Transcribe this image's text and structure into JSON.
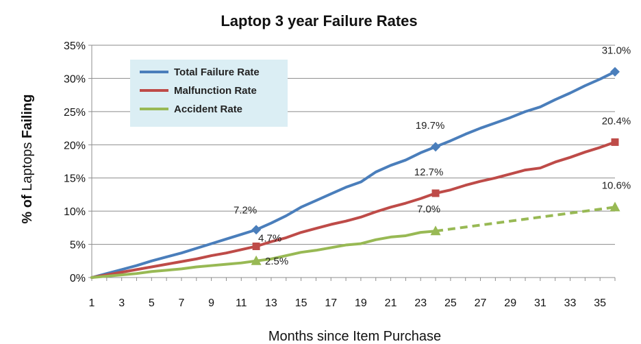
{
  "chart_data": {
    "type": "line",
    "title": "Laptop 3 year Failure Rates",
    "xlabel": "Months since Item Purchase",
    "ylabel_parts": [
      "% of",
      " Laptops ",
      "Failing"
    ],
    "xlim": [
      1,
      36
    ],
    "ylim": [
      0,
      35
    ],
    "x_ticks": [
      1,
      3,
      5,
      7,
      9,
      11,
      13,
      15,
      17,
      19,
      21,
      23,
      25,
      27,
      29,
      31,
      33,
      35
    ],
    "y_ticks": [
      "0%",
      "5%",
      "10%",
      "15%",
      "20%",
      "25%",
      "30%",
      "35%"
    ],
    "grid": true,
    "legend_position": "top-left",
    "series": [
      {
        "name": "Total Failure Rate",
        "color": "#4a7ebb",
        "marker": "diamond",
        "points": [
          [
            1,
            0
          ],
          [
            2,
            0.6
          ],
          [
            3,
            1.2
          ],
          [
            4,
            1.8
          ],
          [
            5,
            2.5
          ],
          [
            6,
            3.1
          ],
          [
            7,
            3.7
          ],
          [
            8,
            4.4
          ],
          [
            9,
            5.1
          ],
          [
            10,
            5.8
          ],
          [
            11,
            6.5
          ],
          [
            12,
            7.2
          ],
          [
            13,
            8.2
          ],
          [
            14,
            9.3
          ],
          [
            15,
            10.6
          ],
          [
            16,
            11.6
          ],
          [
            17,
            12.6
          ],
          [
            18,
            13.6
          ],
          [
            19,
            14.4
          ],
          [
            20,
            15.9
          ],
          [
            21,
            16.9
          ],
          [
            22,
            17.7
          ],
          [
            23,
            18.8
          ],
          [
            24,
            19.7
          ],
          [
            25,
            20.6
          ],
          [
            26,
            21.6
          ],
          [
            27,
            22.5
          ],
          [
            28,
            23.3
          ],
          [
            29,
            24.1
          ],
          [
            30,
            25.0
          ],
          [
            31,
            25.7
          ],
          [
            32,
            26.8
          ],
          [
            33,
            27.8
          ],
          [
            34,
            28.9
          ],
          [
            35,
            29.9
          ],
          [
            36,
            31.0
          ]
        ],
        "marked_points": [
          [
            12,
            7.2
          ],
          [
            24,
            19.7
          ],
          [
            36,
            31.0
          ]
        ],
        "labels": [
          {
            "x": 12,
            "y": 7.2,
            "text": "7.2%"
          },
          {
            "x": 24,
            "y": 19.7,
            "text": "19.7%"
          },
          {
            "x": 36,
            "y": 31.0,
            "text": "31.0%"
          }
        ]
      },
      {
        "name": "Malfunction Rate",
        "color": "#be4b48",
        "marker": "square",
        "points": [
          [
            1,
            0
          ],
          [
            2,
            0.4
          ],
          [
            3,
            0.8
          ],
          [
            4,
            1.2
          ],
          [
            5,
            1.6
          ],
          [
            6,
            2.0
          ],
          [
            7,
            2.4
          ],
          [
            8,
            2.8
          ],
          [
            9,
            3.3
          ],
          [
            10,
            3.7
          ],
          [
            11,
            4.2
          ],
          [
            12,
            4.7
          ],
          [
            13,
            5.4
          ],
          [
            14,
            6.0
          ],
          [
            15,
            6.8
          ],
          [
            16,
            7.4
          ],
          [
            17,
            8.0
          ],
          [
            18,
            8.5
          ],
          [
            19,
            9.1
          ],
          [
            20,
            9.9
          ],
          [
            21,
            10.6
          ],
          [
            22,
            11.2
          ],
          [
            23,
            11.9
          ],
          [
            24,
            12.7
          ],
          [
            25,
            13.2
          ],
          [
            26,
            13.9
          ],
          [
            27,
            14.5
          ],
          [
            28,
            15.0
          ],
          [
            29,
            15.6
          ],
          [
            30,
            16.2
          ],
          [
            31,
            16.5
          ],
          [
            32,
            17.4
          ],
          [
            33,
            18.1
          ],
          [
            34,
            18.9
          ],
          [
            35,
            19.6
          ],
          [
            36,
            20.4
          ]
        ],
        "marked_points": [
          [
            12,
            4.7
          ],
          [
            24,
            12.7
          ],
          [
            36,
            20.4
          ]
        ],
        "labels": [
          {
            "x": 12,
            "y": 4.7,
            "text": "4.7%"
          },
          {
            "x": 24,
            "y": 12.7,
            "text": "12.7%"
          },
          {
            "x": 36,
            "y": 20.4,
            "text": "20.4%"
          }
        ]
      },
      {
        "name": "Accident Rate",
        "color": "#98b954",
        "marker": "triangle",
        "points": [
          [
            1,
            0
          ],
          [
            2,
            0.2
          ],
          [
            3,
            0.4
          ],
          [
            4,
            0.6
          ],
          [
            5,
            0.9
          ],
          [
            6,
            1.1
          ],
          [
            7,
            1.3
          ],
          [
            8,
            1.6
          ],
          [
            9,
            1.8
          ],
          [
            10,
            2.0
          ],
          [
            11,
            2.2
          ],
          [
            12,
            2.5
          ],
          [
            13,
            2.8
          ],
          [
            14,
            3.3
          ],
          [
            15,
            3.8
          ],
          [
            16,
            4.1
          ],
          [
            17,
            4.5
          ],
          [
            18,
            4.9
          ],
          [
            19,
            5.1
          ],
          [
            20,
            5.7
          ],
          [
            21,
            6.1
          ],
          [
            22,
            6.3
          ],
          [
            23,
            6.8
          ],
          [
            24,
            7.0
          ]
        ],
        "projected_points": [
          [
            24,
            7.0
          ],
          [
            36,
            10.6
          ]
        ],
        "marked_points": [
          [
            12,
            2.5
          ],
          [
            24,
            7.0
          ],
          [
            36,
            10.6
          ]
        ],
        "labels": [
          {
            "x": 12,
            "y": 2.5,
            "text": "2.5%"
          },
          {
            "x": 24,
            "y": 7.0,
            "text": "7.0%"
          },
          {
            "x": 36,
            "y": 10.6,
            "text": "10.6%"
          }
        ]
      }
    ]
  }
}
